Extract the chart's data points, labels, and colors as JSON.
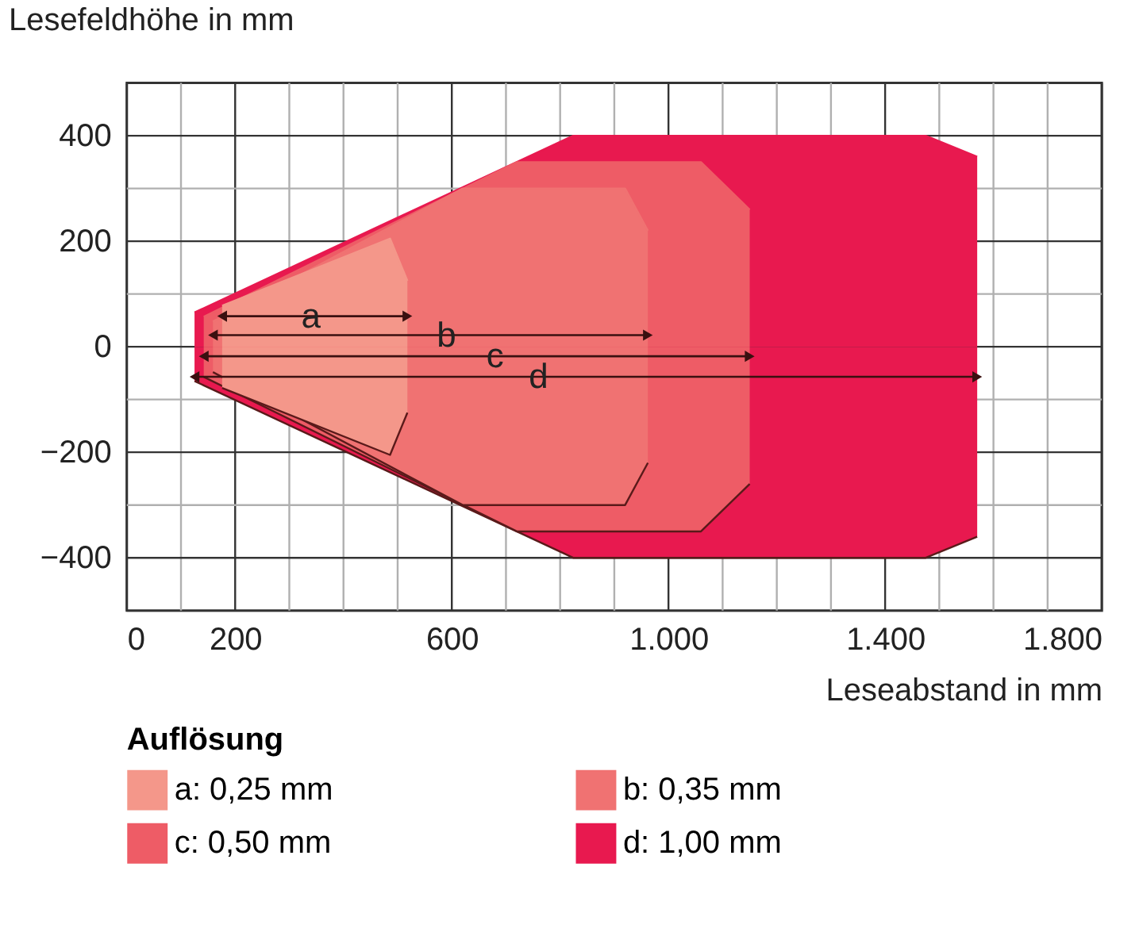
{
  "chart_data": {
    "type": "area",
    "xlabel": "Leseabstand in mm",
    "ylabel": "Lesefeldhöhe in mm",
    "legend_title": "Auflösung",
    "legend": "bottom",
    "grid": true,
    "xlim": [
      0,
      1800
    ],
    "ylim": [
      -500,
      500
    ],
    "xticks": [
      0,
      {
        "value": 100,
        "label": null
      },
      200,
      {
        "value": 300,
        "label": null
      },
      {
        "value": 400,
        "label": null
      },
      {
        "value": 500,
        "label": null
      },
      600,
      {
        "value": 700,
        "label": null
      },
      {
        "value": 800,
        "label": null
      },
      {
        "value": 900,
        "label": null
      },
      {
        "value": 1000,
        "label": "1.000"
      },
      {
        "value": 1100,
        "label": null
      },
      {
        "value": 1200,
        "label": null
      },
      {
        "value": 1300,
        "label": null
      },
      {
        "value": 1400,
        "label": "1.400"
      },
      {
        "value": 1500,
        "label": null
      },
      {
        "value": 1600,
        "label": null
      },
      {
        "value": 1700,
        "label": null
      },
      {
        "value": 1800,
        "label": "1.800"
      }
    ],
    "yticks": [
      {
        "value": -400,
        "label": "−400"
      },
      {
        "value": -300,
        "label": null
      },
      {
        "value": -200,
        "label": "−200"
      },
      {
        "value": -100,
        "label": null
      },
      0,
      {
        "value": 100,
        "label": null
      },
      200,
      {
        "value": 300,
        "label": null
      },
      400
    ],
    "series": [
      {
        "name": "a: 0,25 mm",
        "color": "#f4978a",
        "x": [
          176,
          486,
          518
        ],
        "values": [
          78,
          205,
          125
        ]
      },
      {
        "color": "#f4978a",
        "x": [
          176,
          486,
          518
        ],
        "values": [
          -78,
          -205,
          -125
        ]
      },
      {
        "name": "b: 0,35 mm",
        "color": "#f07272",
        "x": [
          159,
          620,
          920,
          962
        ],
        "values": [
          48,
          300,
          300,
          220
        ]
      },
      {
        "color": "#f07272",
        "x": [
          159,
          620,
          920,
          962
        ],
        "values": [
          -48,
          -300,
          -300,
          -220
        ]
      },
      {
        "name": "c: 0,50 mm",
        "color": "#ee5c66",
        "x": [
          142,
          720,
          1060,
          1150
        ],
        "values": [
          57,
          350,
          350,
          260
        ]
      },
      {
        "color": "#ee5c66",
        "x": [
          142,
          720,
          1060,
          1150
        ],
        "values": [
          -57,
          -350,
          -350,
          -260
        ]
      },
      {
        "name": "d: 1,00 mm",
        "color": "#e8194f",
        "x": [
          125,
          824,
          1475,
          1570
        ],
        "values": [
          65,
          400,
          400,
          360
        ]
      },
      {
        "color": "#e8194f",
        "x": [
          125,
          824,
          1475,
          1570
        ],
        "values": [
          -65,
          -400,
          -400,
          -360
        ]
      },
      {
        "type": "line",
        "color": "#3a1010",
        "marker": "triangle",
        "x": [
          176,
          518
        ],
        "values": [
          58,
          58
        ]
      },
      {
        "type": "line",
        "color": "#3a1010",
        "marker": "triangle",
        "x": [
          159,
          962
        ],
        "values": [
          22,
          22
        ]
      },
      {
        "type": "line",
        "color": "#3a1010",
        "marker": "triangle",
        "x": [
          142,
          1150
        ],
        "values": [
          -18,
          -18
        ]
      },
      {
        "type": "line",
        "color": "#3a1010",
        "marker": "triangle",
        "x": [
          125,
          1570
        ],
        "values": [
          -57,
          -57
        ]
      }
    ],
    "annotations": [
      {
        "text": "a",
        "x": 340,
        "y": 58
      },
      {
        "text": "b",
        "x": 590,
        "y": 22
      },
      {
        "text": "c",
        "x": 680,
        "y": -18
      },
      {
        "text": "d",
        "x": 760,
        "y": -57
      }
    ]
  }
}
